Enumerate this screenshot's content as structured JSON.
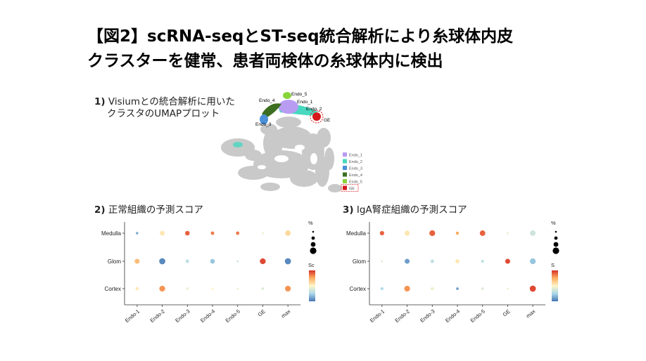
{
  "title_line1": "【図2】scRNA-seqとST-seq統合解析により糸球体内皮",
  "title_line2": "クラスターを健常、患者両検体の糸球体内に検出",
  "section1": {
    "num": "1)",
    "line1": "Visiumとの統合解析に用いた",
    "line2": "クラスタのUMAPプロット"
  },
  "section2": {
    "num": "2)",
    "label": "正常組織の予測スコア"
  },
  "section3": {
    "num": "3)",
    "label": "IgA腎症組織の予測スコア"
  },
  "umap": {
    "cluster_labels": [
      "Endo_5",
      "Endo_4",
      "Endo_1",
      "Endo_2",
      "GE",
      "Endo_3"
    ],
    "legend": [
      {
        "label": "Endo_1",
        "color": "#b89cf2"
      },
      {
        "label": "Endo_2",
        "color": "#48d8c0"
      },
      {
        "label": "Endo_3",
        "color": "#4a90d9"
      },
      {
        "label": "Endo_4",
        "color": "#3c6e1f"
      },
      {
        "label": "Endo_5",
        "color": "#88d43a"
      },
      {
        "label": "GE",
        "color": "#d7191c"
      }
    ]
  },
  "chart_data": [
    {
      "type": "scatter",
      "title": "正常組織の予測スコア",
      "categories": [
        "Endo-1",
        "Endo-2",
        "Endo-3",
        "Endo-4",
        "Endo-5",
        "GE",
        "max"
      ],
      "rows": [
        "Medulla",
        "Glom",
        "Cortex"
      ],
      "legend_size_title": "%",
      "legend_color_title": "Sc",
      "score": [
        [
          0.15,
          0.55,
          0.9,
          0.85,
          0.85,
          0.45,
          0.6
        ],
        [
          0.7,
          0.05,
          0.3,
          0.2,
          0.35,
          0.95,
          0.05
        ],
        [
          0.55,
          0.8,
          0.45,
          0.5,
          0.45,
          0.4,
          0.8
        ]
      ],
      "size": [
        [
          0.2,
          0.6,
          0.55,
          0.35,
          0.35,
          0.1,
          0.7
        ],
        [
          0.6,
          0.8,
          0.35,
          0.55,
          0.1,
          0.75,
          0.8
        ],
        [
          0.3,
          0.75,
          0.2,
          0.15,
          0.1,
          0.2,
          0.75
        ]
      ]
    },
    {
      "type": "scatter",
      "title": "IgA腎症組織の予測スコア",
      "categories": [
        "Endo-1",
        "Endo-2",
        "Endo-3",
        "Endo-4",
        "Endo-5",
        "GE",
        "max"
      ],
      "rows": [
        "Medulla",
        "Glom",
        "Cortex"
      ],
      "legend_size_title": "%",
      "legend_color_title": "S",
      "score": [
        [
          0.9,
          0.55,
          0.9,
          0.75,
          0.9,
          0.45,
          0.35
        ],
        [
          0.4,
          0.1,
          0.3,
          0.55,
          0.3,
          0.95,
          0.2
        ],
        [
          0.25,
          0.8,
          0.45,
          0.1,
          0.4,
          0.45,
          0.95
        ]
      ],
      "size": [
        [
          0.5,
          0.65,
          0.75,
          0.3,
          0.7,
          0.1,
          0.7
        ],
        [
          0.1,
          0.6,
          0.35,
          0.45,
          0.25,
          0.6,
          0.75
        ],
        [
          0.25,
          0.75,
          0.3,
          0.2,
          0.2,
          0.1,
          0.8
        ]
      ]
    }
  ]
}
